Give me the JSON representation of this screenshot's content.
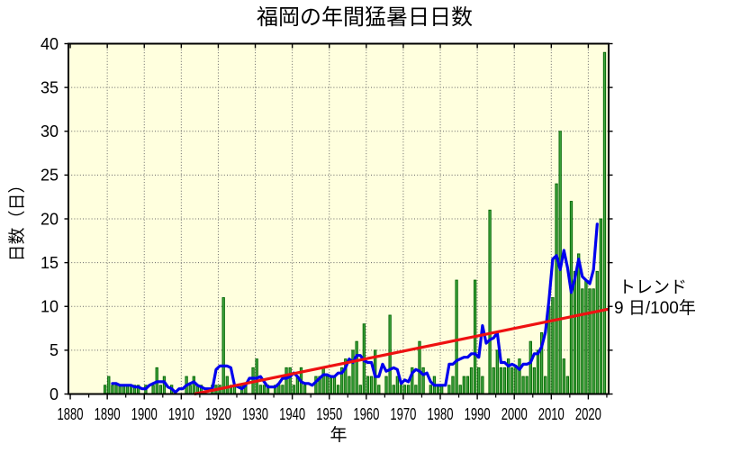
{
  "title": "福岡の年間猛暑日日数",
  "chart_data": {
    "type": "bar",
    "title": "福岡の年間猛暑日日数",
    "xlabel": "年",
    "ylabel": "日数（日）",
    "xlim": [
      1879.5,
      2025.5
    ],
    "ylim": [
      0,
      40
    ],
    "x_ticks_major": [
      1880,
      1890,
      1900,
      1910,
      1920,
      1930,
      1940,
      1950,
      1960,
      1970,
      1980,
      1990,
      2000,
      2010,
      2020
    ],
    "x_ticks_minor_step": 5,
    "y_ticks": [
      0,
      5,
      10,
      15,
      20,
      25,
      30,
      35,
      40
    ],
    "grid": true,
    "start_year": 1890,
    "values": [
      1,
      2,
      1,
      1,
      1,
      1,
      1,
      1,
      1,
      1,
      0,
      1,
      0,
      1,
      3,
      1,
      2,
      0,
      1,
      0,
      0,
      0,
      2,
      1,
      2,
      1,
      1,
      0,
      0,
      1,
      1,
      1,
      11,
      2,
      1,
      1,
      0,
      1,
      1,
      0,
      3,
      4,
      1,
      1,
      1,
      0,
      1,
      1,
      1,
      3,
      3,
      1,
      2,
      3,
      1,
      0,
      0,
      2,
      2,
      3,
      2,
      2,
      2,
      1,
      3,
      4,
      2,
      5,
      6,
      1,
      8,
      2,
      2,
      5,
      1,
      0,
      2,
      9,
      1,
      2,
      1,
      1,
      1,
      3,
      1,
      6,
      3,
      0,
      1,
      2,
      1,
      1,
      0,
      1,
      2,
      13,
      1,
      2,
      2,
      3,
      13,
      3,
      2,
      0,
      21,
      3,
      5,
      3,
      3,
      4,
      3,
      3,
      4,
      2,
      2,
      6,
      3,
      5,
      7,
      2,
      10,
      11,
      24,
      30,
      4,
      2,
      22,
      14,
      16,
      12,
      13,
      12,
      12,
      14,
      20,
      39
    ],
    "moving_average_window": 5,
    "trend": {
      "label_line1": "トレンド",
      "label_line2": "9 日/100年",
      "start_year": 1913.5,
      "start_value": 0,
      "end_year": 2025.5,
      "end_value": 9.7
    },
    "colors": {
      "plot_bg": "#ffffde",
      "bar_fill": "#3fa43f",
      "bar_border": "#006400",
      "moving_average": "#0000ee",
      "trend": "#ee1111",
      "grid": "#666666",
      "axis": "#000000"
    }
  }
}
